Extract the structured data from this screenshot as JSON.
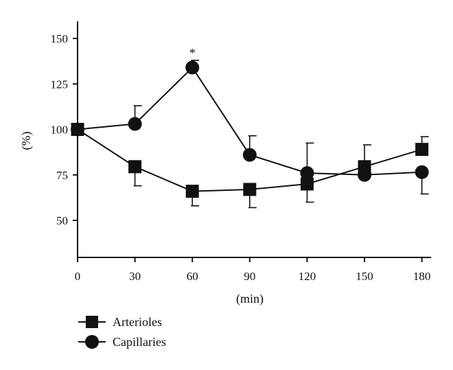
{
  "chart_data": {
    "type": "line",
    "title": "",
    "xlabel": "(min)",
    "ylabel": "(%)",
    "x": [
      0,
      30,
      60,
      90,
      120,
      150,
      180
    ],
    "x_ticks": [
      "0",
      "30",
      "60",
      "90",
      "120",
      "150",
      "180"
    ],
    "y_ticks": [
      "50",
      "75",
      "100",
      "125",
      "150"
    ],
    "xlim": [
      0,
      185
    ],
    "ylim": [
      30,
      160
    ],
    "series": [
      {
        "name": "Arterioles",
        "marker": "square",
        "values": [
          100,
          79.5,
          66,
          67,
          70,
          79.5,
          89
        ],
        "error_up": [
          null,
          null,
          null,
          null,
          null,
          91.5,
          96
        ],
        "error_down": [
          null,
          69,
          58,
          57,
          60,
          null,
          null
        ]
      },
      {
        "name": "Capillaries",
        "marker": "circle",
        "values": [
          100,
          103,
          134,
          86,
          76,
          75,
          76.5
        ],
        "error_up": [
          null,
          113,
          138,
          96.5,
          92.5,
          null,
          null
        ],
        "error_down": [
          null,
          null,
          null,
          null,
          null,
          null,
          64.5
        ]
      }
    ],
    "annotations": [
      {
        "text": "*",
        "x": 60,
        "y": 138
      }
    ],
    "legend": "bottom-left",
    "grid": false
  }
}
